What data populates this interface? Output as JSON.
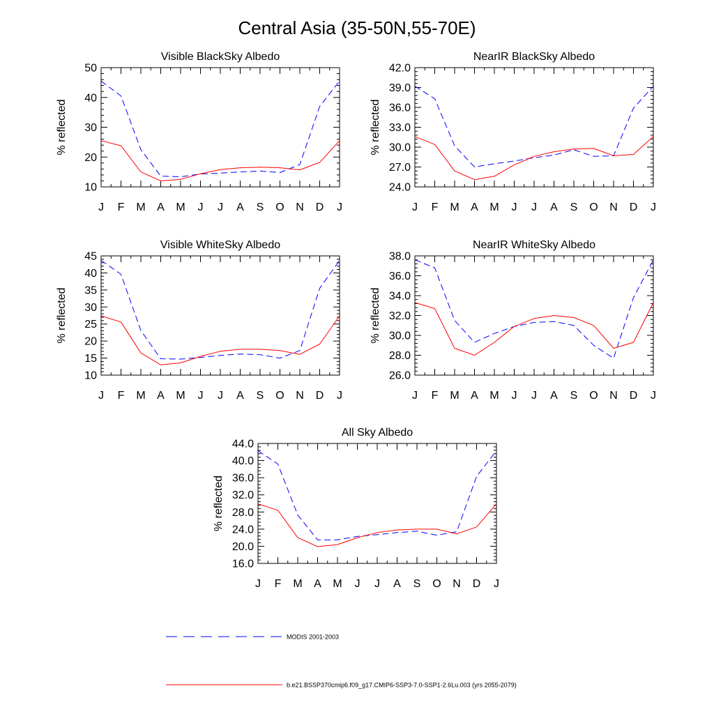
{
  "figure": {
    "title": "Central Asia (35-50N,55-70E)"
  },
  "legend": {
    "placement": "bottom-left",
    "entries": [
      {
        "label": "MODIS 2001-2003",
        "color": "#0000ff",
        "dash": true
      },
      {
        "label": "b.e21.BSSP370cmip6.f09_g17.CMIP6-SSP3-7.0-SSP1-2.6Lu.003 (yrs 2055-2079)",
        "color": "#ff0000",
        "dash": false
      }
    ]
  },
  "chart_data": [
    {
      "type": "line",
      "title": "Visible BlackSky Albedo",
      "ylabel": "% reflected",
      "xlabel": "",
      "categories": [
        "J",
        "F",
        "M",
        "A",
        "M",
        "J",
        "J",
        "A",
        "S",
        "O",
        "N",
        "D",
        "J"
      ],
      "ylim": [
        10,
        50
      ],
      "yticks": [
        "10",
        "20",
        "30",
        "40",
        "50"
      ],
      "grid": false,
      "series": [
        {
          "name": "MODIS 2001-2003",
          "color": "#0000ff",
          "dash": true,
          "values": [
            45.5,
            40.5,
            22.5,
            13.6,
            13.4,
            14.3,
            14.6,
            15.0,
            15.3,
            14.8,
            17.5,
            37.0,
            45.5
          ]
        },
        {
          "name": "b.e21.BSSP370cmip6.f09_g17.CMIP6-SSP3-7.0-SSP1-2.6Lu.003 (yrs 2055-2079)",
          "color": "#ff0000",
          "dash": false,
          "values": [
            25.5,
            23.8,
            15.0,
            12.0,
            12.5,
            14.4,
            15.8,
            16.4,
            16.6,
            16.4,
            15.7,
            18.2,
            25.5
          ]
        }
      ]
    },
    {
      "type": "line",
      "title": "NearIR BlackSky Albedo",
      "ylabel": "% reflected",
      "xlabel": "",
      "categories": [
        "J",
        "F",
        "M",
        "A",
        "M",
        "J",
        "J",
        "A",
        "S",
        "O",
        "N",
        "D",
        "J"
      ],
      "ylim": [
        24,
        42
      ],
      "yticks": [
        "24.0",
        "27.0",
        "30.0",
        "33.0",
        "36.0",
        "39.0",
        "42.0"
      ],
      "grid": false,
      "series": [
        {
          "name": "MODIS 2001-2003",
          "color": "#0000ff",
          "dash": true,
          "values": [
            39.2,
            37.3,
            30.2,
            27.0,
            27.5,
            27.9,
            28.4,
            28.8,
            29.6,
            28.6,
            28.7,
            35.9,
            39.2
          ]
        },
        {
          "name": "b.e21.BSSP370cmip6.f09_g17.CMIP6-SSP3-7.0-SSP1-2.6Lu.003 (yrs 2055-2079)",
          "color": "#ff0000",
          "dash": false,
          "values": [
            31.6,
            30.4,
            26.4,
            25.1,
            25.6,
            27.3,
            28.6,
            29.3,
            29.7,
            29.8,
            28.7,
            28.9,
            31.6
          ]
        }
      ]
    },
    {
      "type": "line",
      "title": "Visible WhiteSky Albedo",
      "ylabel": "% reflected",
      "xlabel": "",
      "categories": [
        "J",
        "F",
        "M",
        "A",
        "M",
        "J",
        "J",
        "A",
        "S",
        "O",
        "N",
        "D",
        "J"
      ],
      "ylim": [
        10,
        45
      ],
      "yticks": [
        "10",
        "15",
        "20",
        "25",
        "30",
        "35",
        "40",
        "45"
      ],
      "grid": false,
      "series": [
        {
          "name": "MODIS 2001-2003",
          "color": "#0000ff",
          "dash": true,
          "values": [
            43.7,
            39.6,
            23.1,
            14.8,
            14.7,
            15.2,
            15.8,
            16.2,
            16.0,
            15.0,
            17.2,
            35.5,
            43.7
          ]
        },
        {
          "name": "b.e21.BSSP370cmip6.f09_g17.CMIP6-SSP3-7.0-SSP1-2.6Lu.003 (yrs 2055-2079)",
          "color": "#ff0000",
          "dash": false,
          "values": [
            27.4,
            25.6,
            16.5,
            13.0,
            13.6,
            15.5,
            17.0,
            17.6,
            17.6,
            17.2,
            16.1,
            19.1,
            27.4
          ]
        }
      ]
    },
    {
      "type": "line",
      "title": "NearIR WhiteSky Albedo",
      "ylabel": "% reflected",
      "xlabel": "",
      "categories": [
        "J",
        "F",
        "M",
        "A",
        "M",
        "J",
        "J",
        "A",
        "S",
        "O",
        "N",
        "D",
        "J"
      ],
      "ylim": [
        26,
        38
      ],
      "yticks": [
        "26.0",
        "28.0",
        "30.0",
        "32.0",
        "34.0",
        "36.0",
        "38.0"
      ],
      "grid": false,
      "series": [
        {
          "name": "MODIS 2001-2003",
          "color": "#0000ff",
          "dash": true,
          "values": [
            37.6,
            36.8,
            31.5,
            29.3,
            30.2,
            30.9,
            31.3,
            31.4,
            31.0,
            29.0,
            27.7,
            33.8,
            37.6
          ]
        },
        {
          "name": "b.e21.BSSP370cmip6.f09_g17.CMIP6-SSP3-7.0-SSP1-2.6Lu.003 (yrs 2055-2079)",
          "color": "#ff0000",
          "dash": false,
          "values": [
            33.3,
            32.7,
            28.7,
            28.0,
            29.3,
            30.9,
            31.7,
            32.0,
            31.8,
            31.0,
            28.7,
            29.3,
            33.3
          ]
        }
      ]
    },
    {
      "type": "line",
      "title": "All Sky Albedo",
      "ylabel": "% reflected",
      "xlabel": "",
      "categories": [
        "J",
        "F",
        "M",
        "A",
        "M",
        "J",
        "J",
        "A",
        "S",
        "O",
        "N",
        "D",
        "J"
      ],
      "ylim": [
        16,
        44
      ],
      "yticks": [
        "16.0",
        "20.0",
        "24.0",
        "28.0",
        "32.0",
        "36.0",
        "40.0",
        "44.0"
      ],
      "grid": false,
      "series": [
        {
          "name": "MODIS 2001-2003",
          "color": "#0000ff",
          "dash": true,
          "values": [
            42.3,
            39.2,
            27.3,
            21.5,
            21.5,
            22.3,
            22.7,
            23.2,
            23.5,
            22.6,
            23.4,
            36.3,
            42.3
          ]
        },
        {
          "name": "b.e21.BSSP370cmip6.f09_g17.CMIP6-SSP3-7.0-SSP1-2.6Lu.003 (yrs 2055-2079)",
          "color": "#ff0000",
          "dash": false,
          "values": [
            29.9,
            28.4,
            22.0,
            19.9,
            20.4,
            22.0,
            23.2,
            23.8,
            24.0,
            24.0,
            22.9,
            24.5,
            29.9
          ]
        }
      ]
    }
  ]
}
